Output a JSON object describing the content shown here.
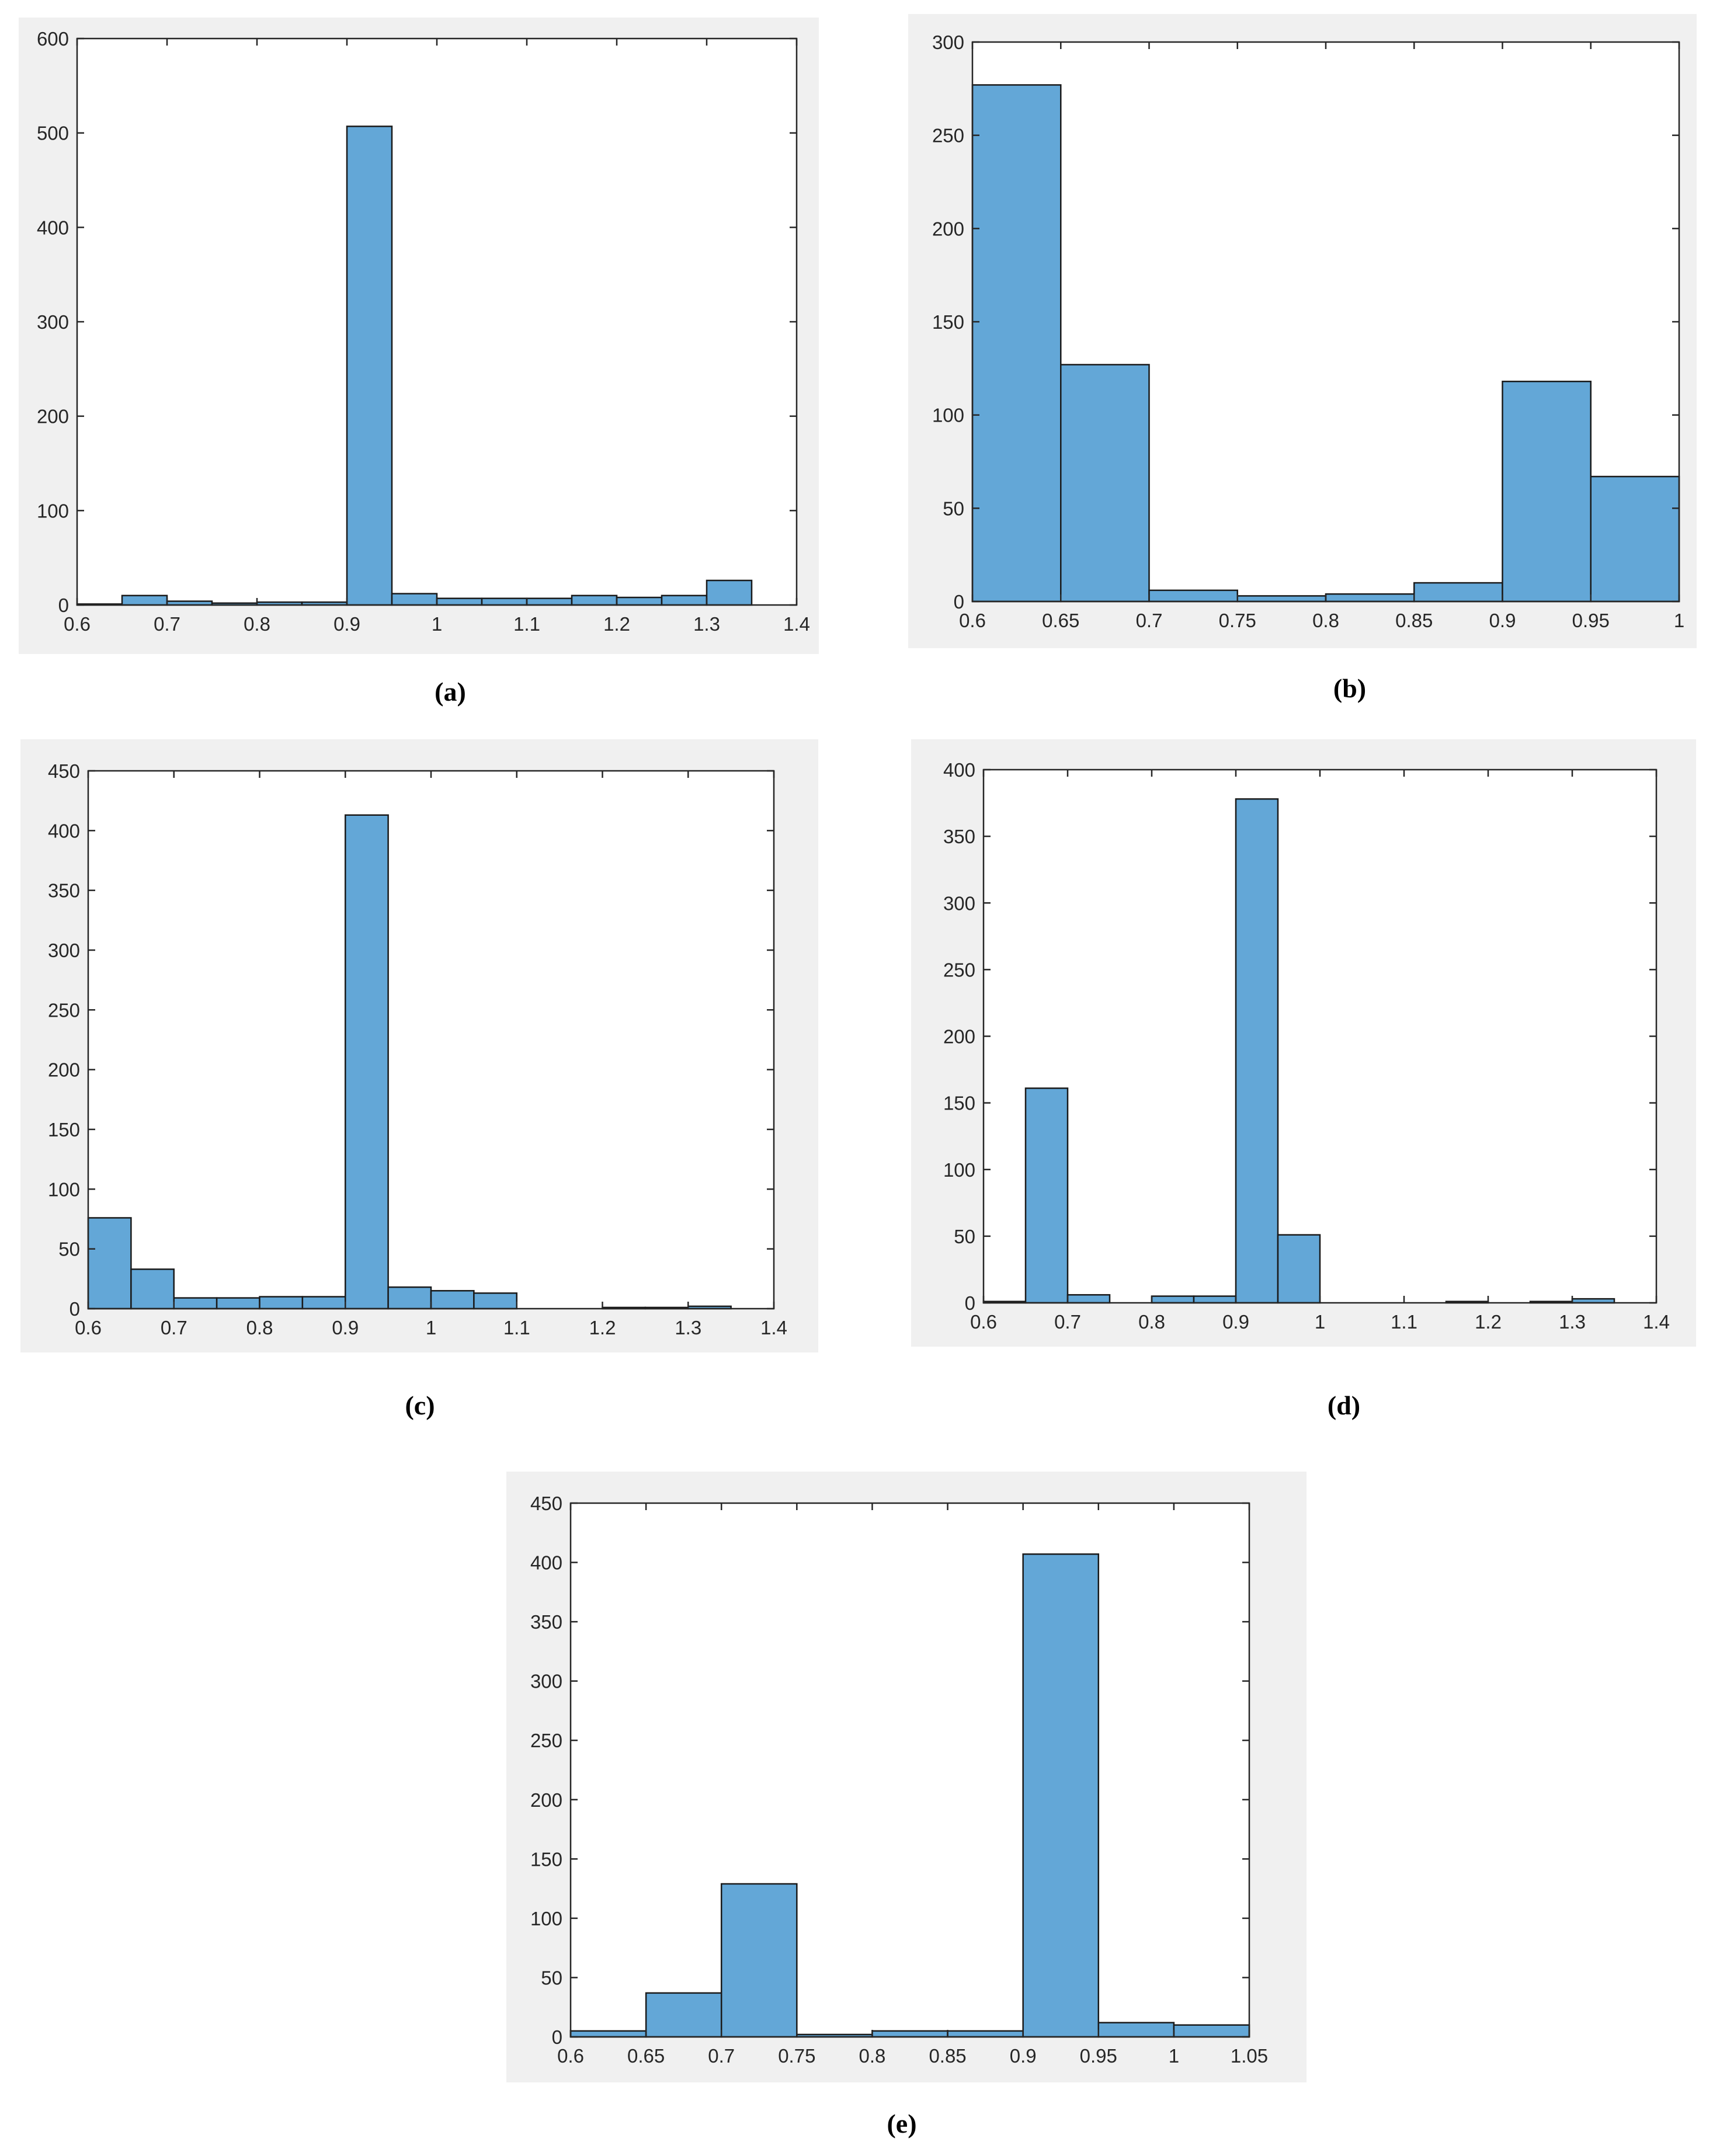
{
  "chart_data": [
    {
      "type": "bar",
      "caption": "(a)",
      "bin_edges": [
        0.6,
        0.65,
        0.7,
        0.75,
        0.8,
        0.85,
        0.9,
        0.95,
        1.0,
        1.05,
        1.1,
        1.15,
        1.2,
        1.25,
        1.3,
        1.35
      ],
      "values": [
        1,
        10,
        4,
        2,
        3,
        3,
        507,
        12,
        7,
        7,
        7,
        10,
        8,
        10,
        26
      ],
      "xlim": [
        0.6,
        1.4
      ],
      "ylim": [
        0,
        600
      ],
      "xticks": [
        0.6,
        0.7,
        0.8,
        0.9,
        1,
        1.1,
        1.2,
        1.3,
        1.4
      ],
      "xtick_labels": [
        "0.6",
        "0.7",
        "0.8",
        "0.9",
        "1",
        "1.1",
        "1.2",
        "1.3",
        "1.4"
      ],
      "yticks": [
        0,
        100,
        200,
        300,
        400,
        500,
        600
      ],
      "ytick_labels": [
        "0",
        "100",
        "200",
        "300",
        "400",
        "500",
        "600"
      ],
      "bar_color": "#63a7d7",
      "grid": false
    },
    {
      "type": "bar",
      "caption": "(b)",
      "bin_edges": [
        0.6,
        0.65,
        0.7,
        0.75,
        0.8,
        0.85,
        0.9,
        0.95,
        1.0
      ],
      "values": [
        277,
        127,
        6,
        3,
        4,
        10,
        118,
        67
      ],
      "xlim": [
        0.6,
        1.0
      ],
      "ylim": [
        0,
        300
      ],
      "xticks": [
        0.6,
        0.65,
        0.7,
        0.75,
        0.8,
        0.85,
        0.9,
        0.95,
        1
      ],
      "xtick_labels": [
        "0.6",
        "0.65",
        "0.7",
        "0.75",
        "0.8",
        "0.85",
        "0.9",
        "0.95",
        "1"
      ],
      "yticks": [
        0,
        50,
        100,
        150,
        200,
        250,
        300
      ],
      "ytick_labels": [
        "0",
        "50",
        "100",
        "150",
        "200",
        "250",
        "300"
      ],
      "bar_color": "#63a7d7",
      "grid": false
    },
    {
      "type": "bar",
      "caption": "(c)",
      "bin_edges": [
        0.6,
        0.65,
        0.7,
        0.75,
        0.8,
        0.85,
        0.9,
        0.95,
        1.0,
        1.05,
        1.1,
        1.15,
        1.2,
        1.25,
        1.3,
        1.35
      ],
      "values": [
        76,
        33,
        9,
        9,
        10,
        10,
        413,
        18,
        15,
        13,
        0,
        0,
        1,
        1,
        2
      ],
      "xlim": [
        0.6,
        1.4
      ],
      "ylim": [
        0,
        450
      ],
      "xticks": [
        0.6,
        0.7,
        0.8,
        0.9,
        1,
        1.1,
        1.2,
        1.3,
        1.4
      ],
      "xtick_labels": [
        "0.6",
        "0.7",
        "0.8",
        "0.9",
        "1",
        "1.1",
        "1.2",
        "1.3",
        "1.4"
      ],
      "yticks": [
        0,
        50,
        100,
        150,
        200,
        250,
        300,
        350,
        400,
        450
      ],
      "ytick_labels": [
        "0",
        "50",
        "100",
        "150",
        "200",
        "250",
        "300",
        "350",
        "400",
        "450"
      ],
      "bar_color": "#63a7d7",
      "grid": false
    },
    {
      "type": "bar",
      "caption": "(d)",
      "bin_edges": [
        0.6,
        0.65,
        0.7,
        0.75,
        0.8,
        0.85,
        0.9,
        0.95,
        1.0,
        1.05,
        1.1,
        1.15,
        1.2,
        1.25,
        1.3,
        1.35
      ],
      "values": [
        1,
        161,
        6,
        0,
        5,
        5,
        378,
        51,
        0,
        0,
        0,
        1,
        0,
        1,
        3
      ],
      "xlim": [
        0.6,
        1.4
      ],
      "ylim": [
        0,
        400
      ],
      "xticks": [
        0.6,
        0.7,
        0.8,
        0.9,
        1,
        1.1,
        1.2,
        1.3,
        1.4
      ],
      "xtick_labels": [
        "0.6",
        "0.7",
        "0.8",
        "0.9",
        "1",
        "1.1",
        "1.2",
        "1.3",
        "1.4"
      ],
      "yticks": [
        0,
        50,
        100,
        150,
        200,
        250,
        300,
        350,
        400
      ],
      "ytick_labels": [
        "0",
        "50",
        "100",
        "150",
        "200",
        "250",
        "300",
        "350",
        "400"
      ],
      "bar_color": "#63a7d7",
      "grid": false
    },
    {
      "type": "bar",
      "caption": "(e)",
      "bin_edges": [
        0.6,
        0.65,
        0.7,
        0.75,
        0.8,
        0.85,
        0.9,
        0.95,
        1.0,
        1.05
      ],
      "values": [
        5,
        37,
        129,
        2,
        5,
        5,
        407,
        12,
        10
      ],
      "xlim": [
        0.6,
        1.05
      ],
      "ylim": [
        0,
        450
      ],
      "xticks": [
        0.6,
        0.65,
        0.7,
        0.75,
        0.8,
        0.85,
        0.9,
        0.95,
        1,
        1.05
      ],
      "xtick_labels": [
        "0.6",
        "0.65",
        "0.7",
        "0.75",
        "0.8",
        "0.85",
        "0.9",
        "0.95",
        "1",
        "1.05"
      ],
      "yticks": [
        0,
        50,
        100,
        150,
        200,
        250,
        300,
        350,
        400,
        450
      ],
      "ytick_labels": [
        "0",
        "50",
        "100",
        "150",
        "200",
        "250",
        "300",
        "350",
        "400",
        "450"
      ],
      "bar_color": "#63a7d7",
      "grid": false
    }
  ]
}
